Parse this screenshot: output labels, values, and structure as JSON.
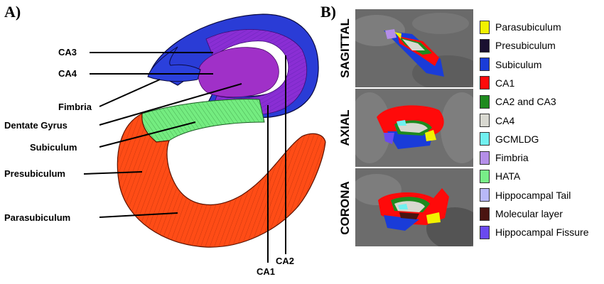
{
  "panel_a": {
    "label": "A)",
    "structure_labels": {
      "ca3": "CA3",
      "ca4": "CA4",
      "fimbria": "Fimbria",
      "dentate_gyrus": "Dentate Gyrus",
      "subiculum": "Subiculum",
      "presubiculum": "Presubiculum",
      "parasubiculum": "Parasubiculum",
      "ca1": "CA1",
      "ca2": "CA2"
    },
    "colors": {
      "blue_outer": "#2233cc",
      "purple_inner": "#8a2ad0",
      "green": "#6ee87a",
      "red": "#ff4a14"
    }
  },
  "panel_b": {
    "label": "B)",
    "views": [
      "SAGITTAL",
      "AXIAL",
      "CORONA"
    ],
    "legend": [
      {
        "label": "Parasubiculum",
        "color": "#f2f200"
      },
      {
        "label": "Presubiculum",
        "color": "#1a1030"
      },
      {
        "label": "Subiculum",
        "color": "#1a3cd8"
      },
      {
        "label": "CA1",
        "color": "#ff0a0a"
      },
      {
        "label": "CA2 and CA3",
        "color": "#1e8a1e"
      },
      {
        "label": "CA4",
        "color": "#d8d8d0"
      },
      {
        "label": "GCMLDG",
        "color": "#70f0f0"
      },
      {
        "label": "Fimbria",
        "color": "#b48ee8"
      },
      {
        "label": "HATA",
        "color": "#78ee88"
      },
      {
        "label": "Hippocampal Tail",
        "color": "#b8b8f8"
      },
      {
        "label": "Molecular layer",
        "color": "#4a1410"
      },
      {
        "label": "Hippocampal Fissure",
        "color": "#6a4af0"
      }
    ]
  }
}
